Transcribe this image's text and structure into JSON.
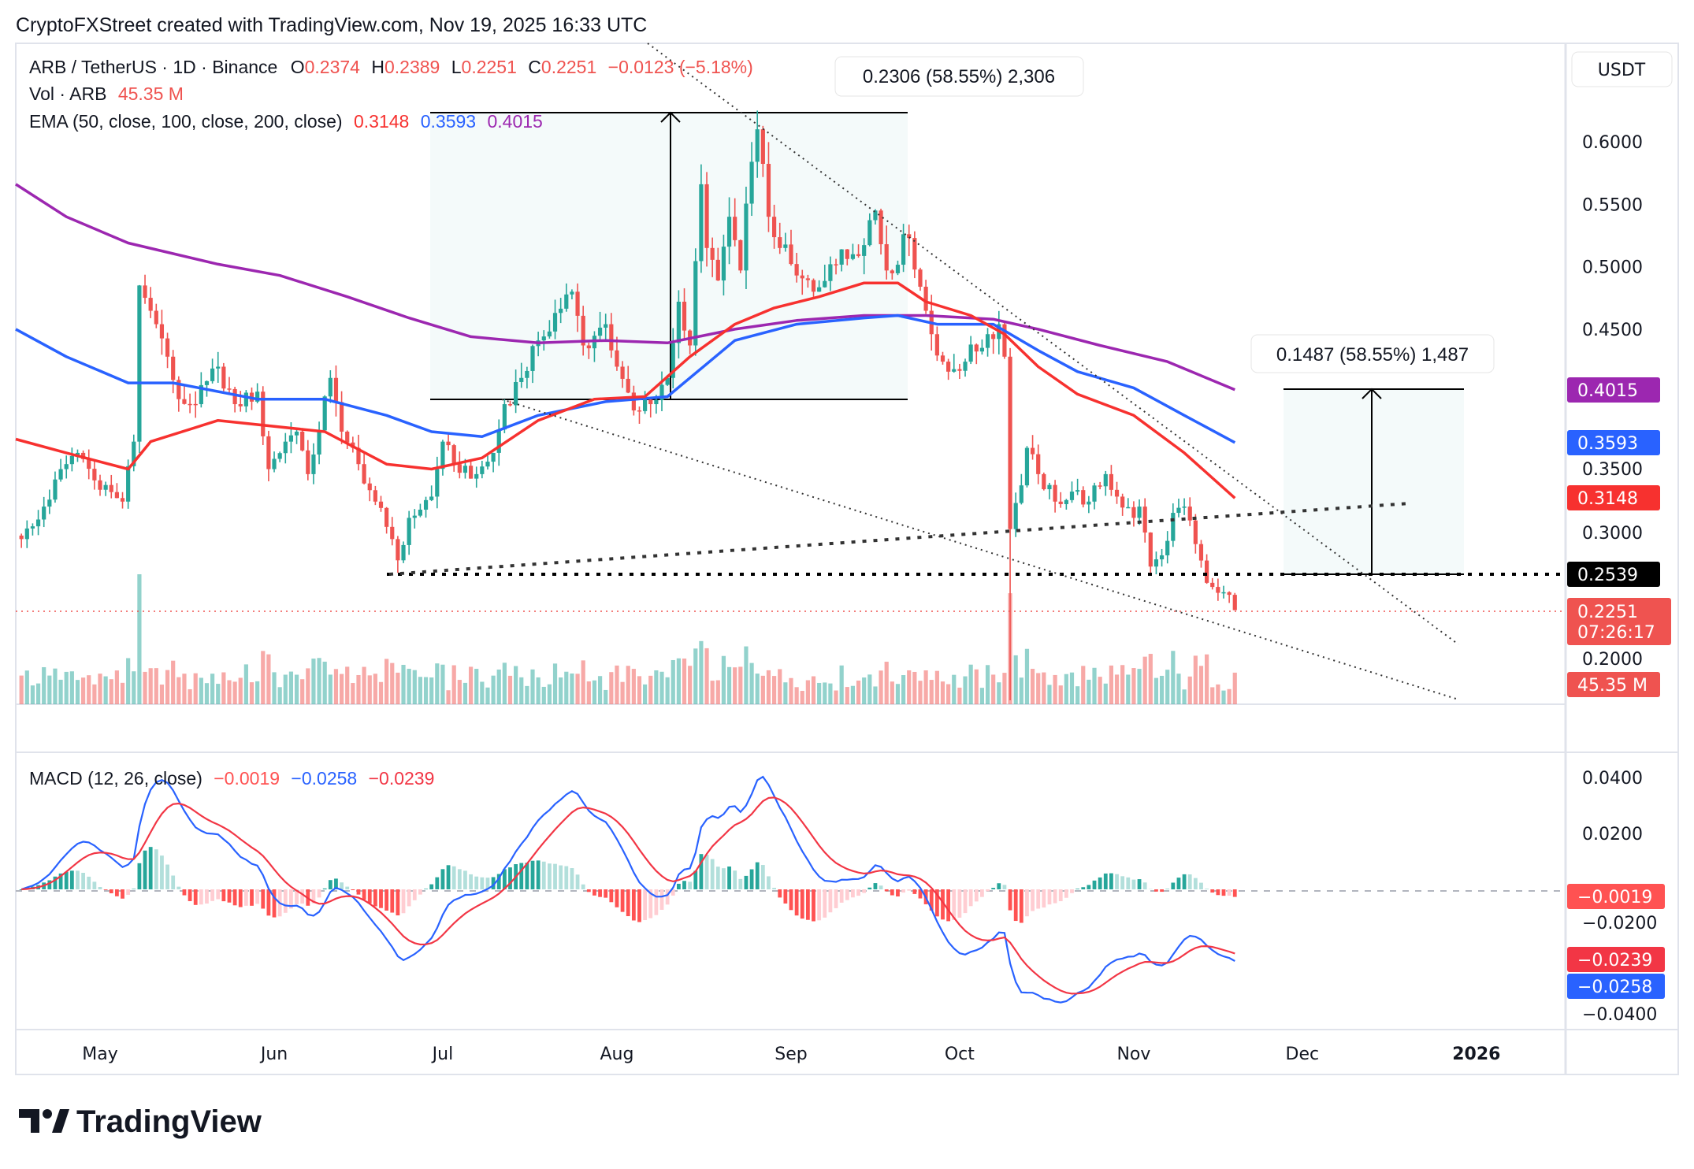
{
  "header": {
    "title": "CryptoFXStreet created with TradingView.com, Nov 19, 2025 16:33 UTC"
  },
  "legend": {
    "symbol": "ARB / TetherUS · 1D · Binance",
    "o_label": "O",
    "o": "0.2374",
    "h_label": "H",
    "h": "0.2389",
    "l_label": "L",
    "l": "0.2251",
    "c_label": "C",
    "c": "0.2251",
    "change": "−0.0123 (−5.18%)",
    "vol_label": "Vol · ARB",
    "vol": "45.35 M",
    "ema_label": "EMA (50, close, 100, close, 200, close)",
    "ema50": "0.3148",
    "ema100": "0.3593",
    "ema200": "0.4015",
    "macd_label": "MACD (12, 26, close)",
    "macd_hist": "−0.0019",
    "macd_line": "−0.0258",
    "macd_signal": "−0.0239"
  },
  "axis": {
    "currency": "USDT",
    "price_ticks": [
      "0.6000",
      "0.5500",
      "0.5000",
      "0.4500",
      "0.3500",
      "0.3000",
      "0.2000"
    ],
    "macd_ticks": [
      "0.0400",
      "0.0200",
      "−0.0200",
      "−0.0400"
    ],
    "time_labels": [
      "May",
      "Jun",
      "Jul",
      "Aug",
      "Sep",
      "Oct",
      "Nov",
      "Dec",
      "2026"
    ],
    "badges": {
      "ema200": "0.4015",
      "ema100": "0.3593",
      "ema50": "0.3148",
      "level": "0.2539",
      "price": "0.2251",
      "countdown": "07:26:17",
      "volume": "45.35 M",
      "macd_hist": "−0.0019",
      "macd_signal": "−0.0239",
      "macd_line": "−0.0258"
    }
  },
  "drawings": {
    "measure_1": {
      "label": "0.2306 (58.55%) 2,306",
      "from": 0.3937,
      "to": 0.6243
    },
    "measure_2": {
      "label": "0.1487 (58.55%) 1,487",
      "from": 0.2539,
      "to": 0.4026
    },
    "support_level": 0.2539
  },
  "footer": {
    "brand": "TradingView"
  },
  "colors": {
    "up": "#26a69a",
    "down": "#ef5350",
    "ema50": "#f7312f",
    "ema100": "#2962ff",
    "ema200": "#9c27b0",
    "macd": "#2962ff",
    "signal": "#f23645"
  },
  "chart_data": {
    "type": "candlestick",
    "symbol": "ARB / TetherUS",
    "interval": "1D",
    "exchange": "Binance",
    "ylim": [
      0.15,
      0.65
    ],
    "close_points": [
      [
        "2025-04-17",
        0.282
      ],
      [
        "2025-04-21",
        0.308
      ],
      [
        "2025-04-25",
        0.342
      ],
      [
        "2025-04-27",
        0.351
      ],
      [
        "2025-04-30",
        0.329
      ],
      [
        "2025-05-05",
        0.312
      ],
      [
        "2025-05-07",
        0.36
      ],
      [
        "2025-05-08",
        0.485
      ],
      [
        "2025-05-11",
        0.454
      ],
      [
        "2025-05-13",
        0.428
      ],
      [
        "2025-05-15",
        0.394
      ],
      [
        "2025-05-18",
        0.39
      ],
      [
        "2025-05-22",
        0.42
      ],
      [
        "2025-05-25",
        0.39
      ],
      [
        "2025-05-29",
        0.4
      ],
      [
        "2025-05-31",
        0.338
      ],
      [
        "2025-06-03",
        0.36
      ],
      [
        "2025-06-05",
        0.368
      ],
      [
        "2025-06-07",
        0.334
      ],
      [
        "2025-06-11",
        0.411
      ],
      [
        "2025-06-13",
        0.368
      ],
      [
        "2025-06-16",
        0.342
      ],
      [
        "2025-06-19",
        0.312
      ],
      [
        "2025-06-22",
        0.282
      ],
      [
        "2025-06-23",
        0.265
      ],
      [
        "2025-06-25",
        0.299
      ],
      [
        "2025-06-29",
        0.316
      ],
      [
        "2025-07-01",
        0.36
      ],
      [
        "2025-07-03",
        0.342
      ],
      [
        "2025-07-07",
        0.334
      ],
      [
        "2025-07-10",
        0.351
      ],
      [
        "2025-07-12",
        0.39
      ],
      [
        "2025-07-15",
        0.411
      ],
      [
        "2025-07-18",
        0.441
      ],
      [
        "2025-07-21",
        0.463
      ],
      [
        "2025-07-24",
        0.48
      ],
      [
        "2025-07-26",
        0.437
      ],
      [
        "2025-07-30",
        0.454
      ],
      [
        "2025-08-01",
        0.42
      ],
      [
        "2025-08-04",
        0.385
      ],
      [
        "2025-08-07",
        0.39
      ],
      [
        "2025-08-10",
        0.411
      ],
      [
        "2025-08-12",
        0.472
      ],
      [
        "2025-08-14",
        0.437
      ],
      [
        "2025-08-16",
        0.566
      ],
      [
        "2025-08-17",
        0.515
      ],
      [
        "2025-08-19",
        0.489
      ],
      [
        "2025-08-21",
        0.54
      ],
      [
        "2025-08-23",
        0.497
      ],
      [
        "2025-08-25",
        0.584
      ],
      [
        "2025-08-26",
        0.61
      ],
      [
        "2025-08-28",
        0.54
      ],
      [
        "2025-08-30",
        0.515
      ],
      [
        "2025-09-02",
        0.493
      ],
      [
        "2025-09-05",
        0.48
      ],
      [
        "2025-09-08",
        0.502
      ],
      [
        "2025-09-12",
        0.51
      ],
      [
        "2025-09-16",
        0.545
      ],
      [
        "2025-09-18",
        0.497
      ],
      [
        "2025-09-22",
        0.523
      ],
      [
        "2025-09-24",
        0.484
      ],
      [
        "2025-09-26",
        0.446
      ],
      [
        "2025-09-29",
        0.416
      ],
      [
        "2025-10-02",
        0.424
      ],
      [
        "2025-10-06",
        0.446
      ],
      [
        "2025-10-08",
        0.454
      ],
      [
        "2025-10-09",
        0.428
      ],
      [
        "2025-10-10",
        0.29
      ],
      [
        "2025-10-12",
        0.325
      ],
      [
        "2025-10-13",
        0.355
      ],
      [
        "2025-10-15",
        0.334
      ],
      [
        "2025-10-18",
        0.312
      ],
      [
        "2025-10-21",
        0.32
      ],
      [
        "2025-10-24",
        0.312
      ],
      [
        "2025-10-27",
        0.334
      ],
      [
        "2025-10-29",
        0.316
      ],
      [
        "2025-11-01",
        0.299
      ],
      [
        "2025-11-02",
        0.308
      ],
      [
        "2025-11-04",
        0.26
      ],
      [
        "2025-11-06",
        0.269
      ],
      [
        "2025-11-08",
        0.303
      ],
      [
        "2025-11-10",
        0.308
      ],
      [
        "2025-11-12",
        0.278
      ],
      [
        "2025-11-14",
        0.247
      ],
      [
        "2025-11-16",
        0.239
      ],
      [
        "2025-11-18",
        0.2374
      ],
      [
        "2025-11-19",
        0.2251
      ]
    ],
    "extremes": [
      {
        "date": "2025-08-26",
        "high": 0.625
      },
      {
        "date": "2025-10-10",
        "low": 0.153
      },
      {
        "date": "2025-06-23",
        "low": 0.255
      }
    ],
    "last_candle": {
      "date": "2025-11-19",
      "open": 0.2374,
      "high": 0.2389,
      "low": 0.2251,
      "close": 0.2251,
      "volume": "45.35 M"
    },
    "ema": {
      "ema50": [
        [
          "2025-04-16",
          0.362
        ],
        [
          "2025-04-25",
          0.351
        ],
        [
          "2025-05-06",
          0.338
        ],
        [
          "2025-05-10",
          0.36
        ],
        [
          "2025-05-22",
          0.377
        ],
        [
          "2025-06-10",
          0.368
        ],
        [
          "2025-06-21",
          0.342
        ],
        [
          "2025-06-29",
          0.338
        ],
        [
          "2025-07-08",
          0.347
        ],
        [
          "2025-07-18",
          0.377
        ],
        [
          "2025-07-28",
          0.394
        ],
        [
          "2025-08-06",
          0.396
        ],
        [
          "2025-08-14",
          0.428
        ],
        [
          "2025-08-22",
          0.454
        ],
        [
          "2025-08-29",
          0.467
        ],
        [
          "2025-09-06",
          0.476
        ],
        [
          "2025-09-14",
          0.487
        ],
        [
          "2025-09-20",
          0.487
        ],
        [
          "2025-09-25",
          0.472
        ],
        [
          "2025-10-03",
          0.461
        ],
        [
          "2025-10-09",
          0.446
        ],
        [
          "2025-10-15",
          0.42
        ],
        [
          "2025-10-22",
          0.398
        ],
        [
          "2025-11-01",
          0.381
        ],
        [
          "2025-11-10",
          0.351
        ],
        [
          "2025-11-19",
          0.3148
        ]
      ],
      "ema100": [
        [
          "2025-04-16",
          0.45
        ],
        [
          "2025-04-25",
          0.428
        ],
        [
          "2025-05-06",
          0.407
        ],
        [
          "2025-05-14",
          0.407
        ],
        [
          "2025-05-29",
          0.394
        ],
        [
          "2025-06-10",
          0.394
        ],
        [
          "2025-06-21",
          0.381
        ],
        [
          "2025-06-29",
          0.368
        ],
        [
          "2025-07-08",
          0.364
        ],
        [
          "2025-07-18",
          0.381
        ],
        [
          "2025-07-30",
          0.392
        ],
        [
          "2025-08-10",
          0.396
        ],
        [
          "2025-08-22",
          0.441
        ],
        [
          "2025-09-02",
          0.454
        ],
        [
          "2025-09-14",
          0.459
        ],
        [
          "2025-09-20",
          0.461
        ],
        [
          "2025-09-27",
          0.454
        ],
        [
          "2025-10-07",
          0.454
        ],
        [
          "2025-10-15",
          0.433
        ],
        [
          "2025-10-22",
          0.416
        ],
        [
          "2025-11-01",
          0.403
        ],
        [
          "2025-11-10",
          0.381
        ],
        [
          "2025-11-19",
          0.3593
        ]
      ],
      "ema200": [
        [
          "2025-04-16",
          0.566
        ],
        [
          "2025-04-25",
          0.54
        ],
        [
          "2025-05-06",
          0.519
        ],
        [
          "2025-05-22",
          0.502
        ],
        [
          "2025-06-02",
          0.493
        ],
        [
          "2025-06-14",
          0.476
        ],
        [
          "2025-06-25",
          0.459
        ],
        [
          "2025-07-06",
          0.444
        ],
        [
          "2025-07-18",
          0.439
        ],
        [
          "2025-07-30",
          0.441
        ],
        [
          "2025-08-10",
          0.439
        ],
        [
          "2025-08-22",
          0.45
        ],
        [
          "2025-09-02",
          0.457
        ],
        [
          "2025-09-14",
          0.461
        ],
        [
          "2025-09-25",
          0.461
        ],
        [
          "2025-10-07",
          0.458
        ],
        [
          "2025-10-15",
          0.45
        ],
        [
          "2025-10-26",
          0.437
        ],
        [
          "2025-11-07",
          0.424
        ],
        [
          "2025-11-19",
          0.4015
        ]
      ]
    },
    "macd": {
      "fast": 12,
      "slow": 26,
      "signal": 9,
      "ylim": [
        -0.045,
        0.045
      ],
      "last": {
        "histogram": -0.0019,
        "macd": -0.0258,
        "signal": -0.0239
      }
    }
  }
}
